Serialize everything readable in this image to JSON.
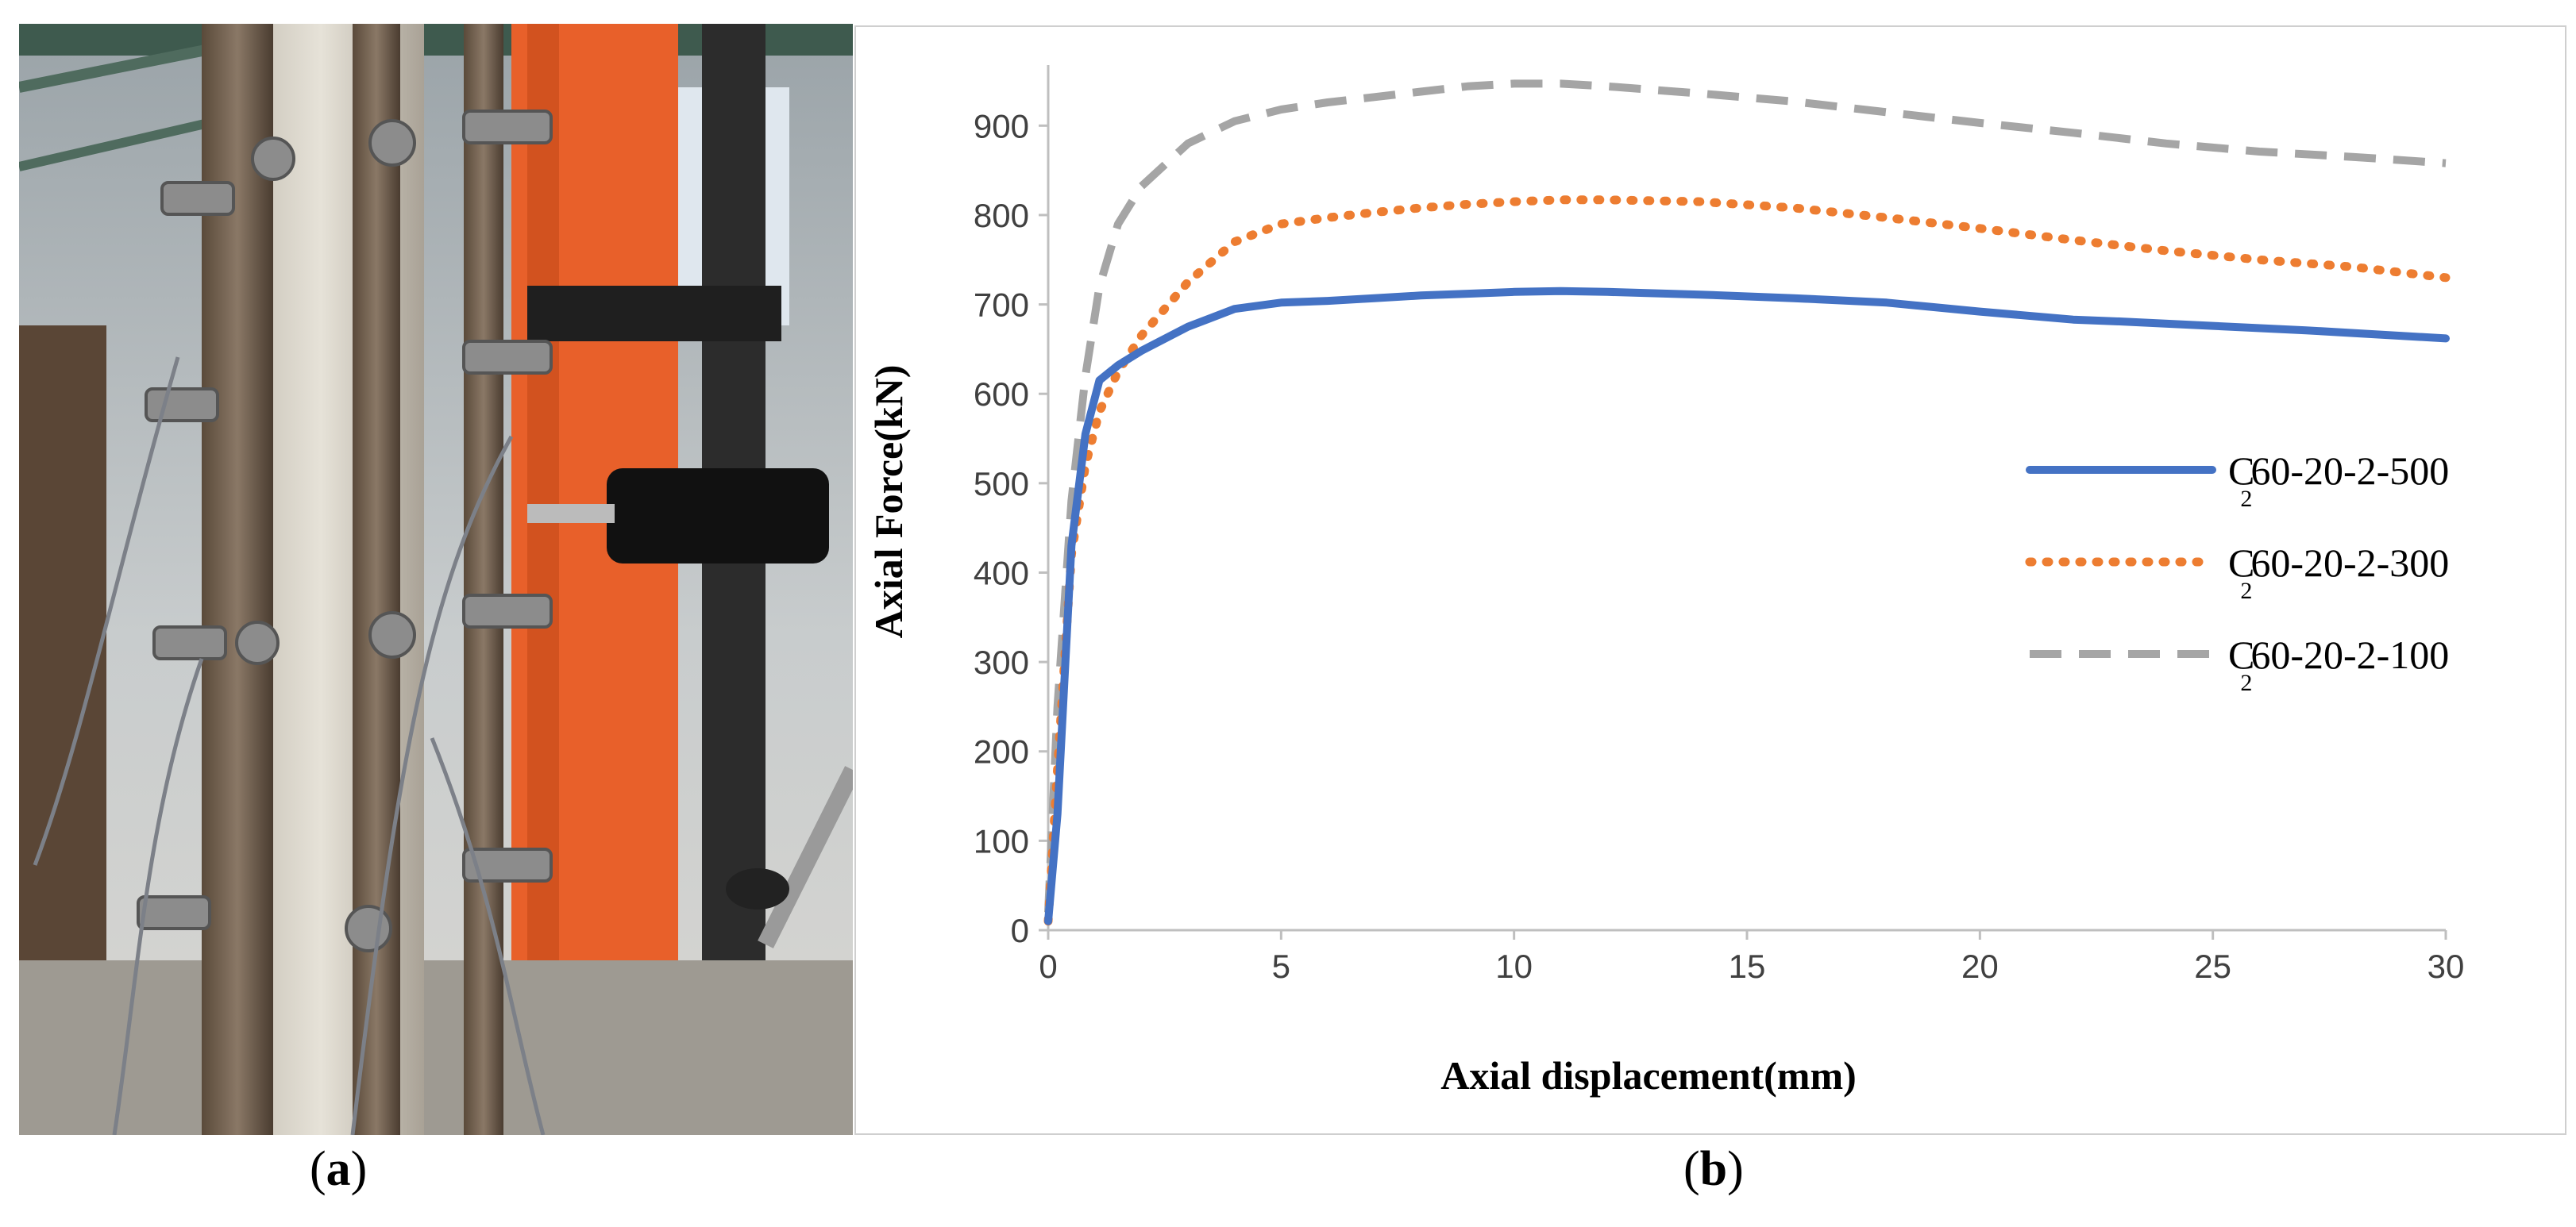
{
  "captions": {
    "a_open": "(",
    "a_letter": "a",
    "a_close": ")",
    "b_open": "(",
    "b_letter": "b",
    "b_close": ")"
  },
  "chart_data": {
    "type": "line",
    "title": "",
    "xlabel": "Axial displacement(mm)",
    "ylabel": "Axial Force(kN)",
    "xlim": [
      0,
      30
    ],
    "ylim": [
      0,
      950
    ],
    "xticks": [
      0,
      5,
      10,
      15,
      20,
      25,
      30
    ],
    "yticks": [
      0,
      100,
      200,
      300,
      400,
      500,
      600,
      700,
      800,
      900
    ],
    "grid": false,
    "legend_position": "right",
    "series": [
      {
        "name": "C60-20-2-500",
        "name_main": "C",
        "name_sub": "2",
        "name_rest": "60-20-2-500",
        "color": "#4472C4",
        "style": "solid",
        "x": [
          0,
          0.2,
          0.5,
          0.8,
          1.1,
          1.5,
          2,
          3,
          4,
          5,
          6,
          7,
          8,
          9,
          10,
          11,
          12,
          14,
          16,
          18,
          20,
          22,
          23,
          25,
          27,
          30
        ],
        "y": [
          10,
          130,
          430,
          555,
          615,
          632,
          648,
          675,
          695,
          702,
          704,
          707,
          710,
          712,
          714,
          715,
          714,
          711,
          707,
          702,
          692,
          683,
          681,
          676,
          671,
          662
        ]
      },
      {
        "name": "C60-20-2-300",
        "name_main": "C",
        "name_sub": "2",
        "name_rest": "60-20-2-300",
        "color": "#ED7D31",
        "style": "dotted",
        "x": [
          0,
          0.2,
          0.5,
          0.8,
          1.1,
          1.5,
          2,
          3,
          4,
          5,
          6,
          7,
          8,
          9,
          10,
          11,
          12,
          14,
          16,
          18,
          20,
          22,
          24,
          26,
          28,
          30
        ],
        "y": [
          10,
          180,
          420,
          520,
          580,
          625,
          665,
          725,
          770,
          790,
          797,
          803,
          808,
          812,
          815,
          817,
          817,
          815,
          808,
          797,
          785,
          772,
          760,
          750,
          742,
          730
        ]
      },
      {
        "name": "C60-20-2-100",
        "name_main": "C",
        "name_sub": "2",
        "name_rest": "60-20-2-100",
        "color": "#A5A5A5",
        "style": "dashed",
        "x": [
          0,
          0.2,
          0.5,
          0.8,
          1.1,
          1.5,
          2,
          3,
          4,
          5,
          6,
          7,
          8,
          9,
          10,
          11,
          12,
          14,
          16,
          18,
          20,
          22,
          24,
          26,
          28,
          30
        ],
        "y": [
          20,
          250,
          480,
          620,
          720,
          790,
          832,
          880,
          905,
          918,
          926,
          932,
          938,
          944,
          947,
          947,
          944,
          936,
          927,
          915,
          903,
          892,
          880,
          871,
          865,
          858
        ]
      }
    ]
  }
}
